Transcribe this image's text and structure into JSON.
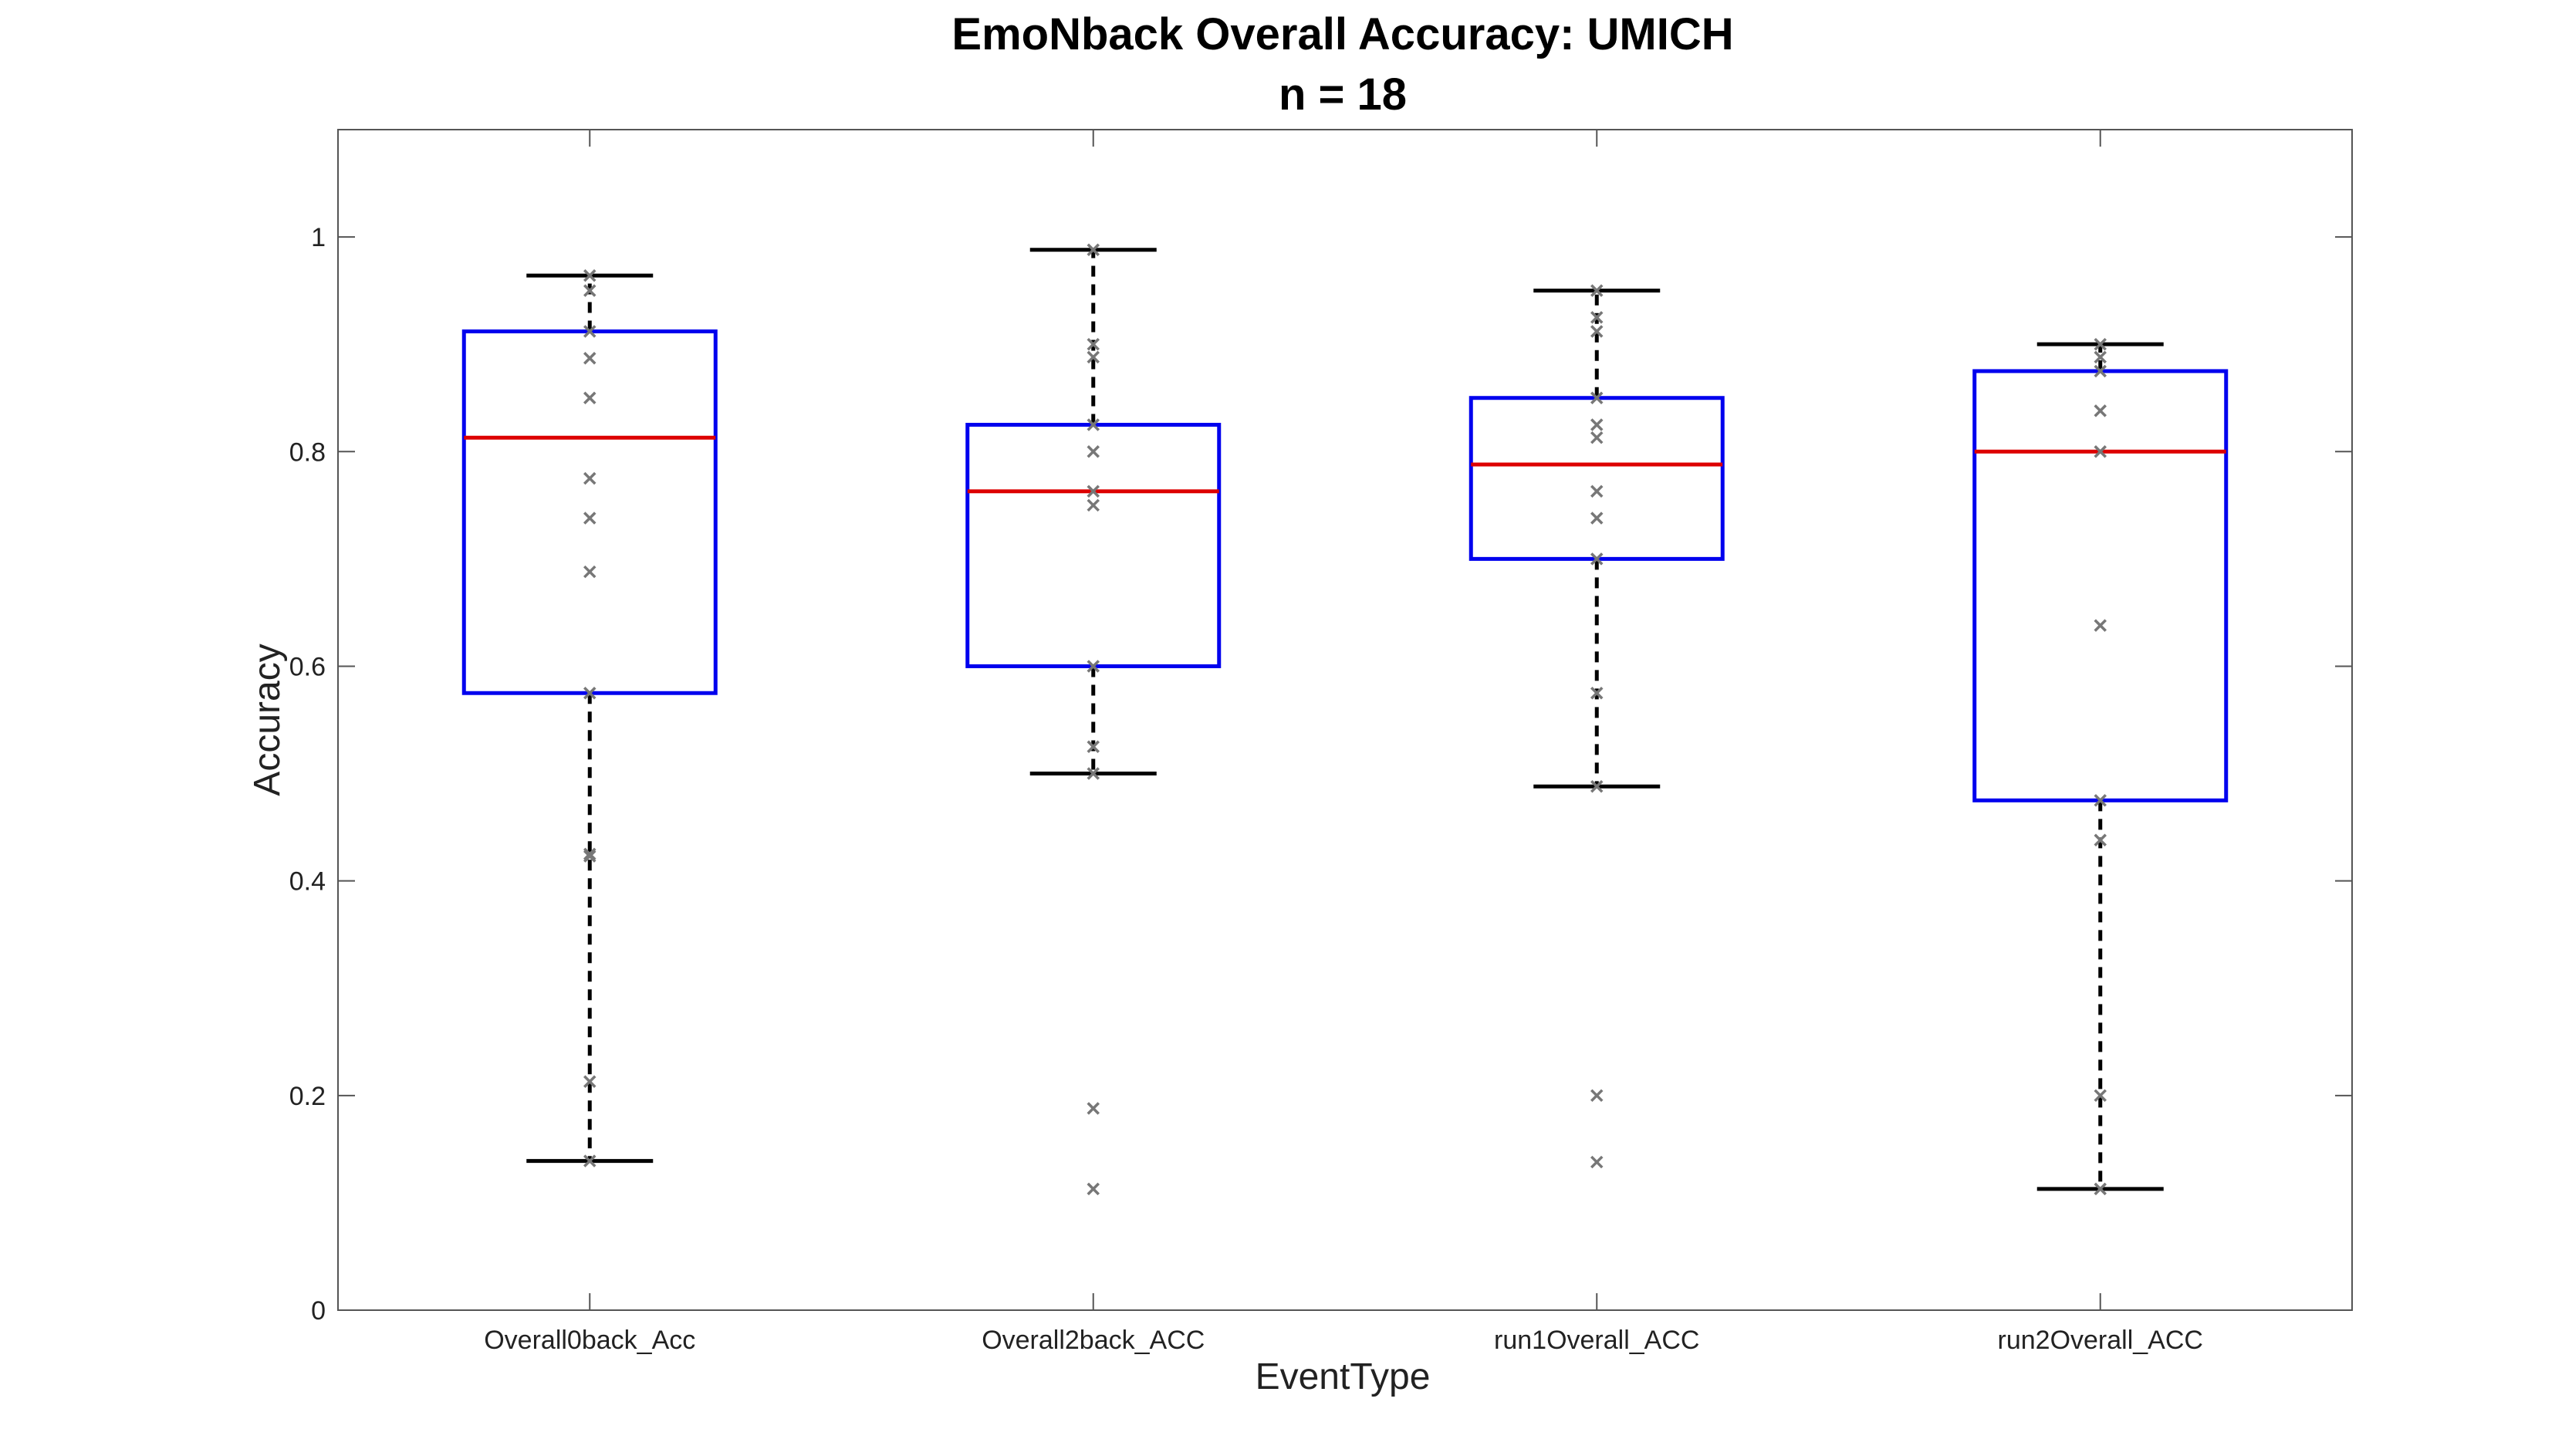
{
  "chart_data": {
    "type": "box",
    "title": "EmoNback Overall Accuracy: UMICH",
    "subtitle": "n = 18",
    "xlabel": "EventType",
    "ylabel": "Accuracy",
    "ylim": [
      0,
      1.1
    ],
    "yticks": [
      0,
      0.2,
      0.4,
      0.6,
      0.8,
      1
    ],
    "ytick_labels": [
      "0",
      "0.2",
      "0.4",
      "0.6",
      "0.8",
      "1"
    ],
    "grid": false,
    "colors": {
      "box": "#0000ee",
      "median": "#dd0000",
      "whisker": "#000000",
      "point": "#777777",
      "axes": "#555555"
    },
    "categories": [
      "Overall0back_Acc",
      "Overall2back_ACC",
      "run1Overall_ACC",
      "run2Overall_ACC"
    ],
    "boxes": [
      {
        "whisker_low": 0.139,
        "q1": 0.575,
        "median": 0.813,
        "q3": 0.912,
        "whisker_high": 0.964,
        "points": [
          0.964,
          0.95,
          0.912,
          0.887,
          0.85,
          0.775,
          0.738,
          0.688,
          0.575,
          0.425,
          0.423,
          0.213,
          0.139
        ]
      },
      {
        "whisker_low": 0.5,
        "q1": 0.6,
        "median": 0.763,
        "q3": 0.825,
        "whisker_high": 0.988,
        "points": [
          0.988,
          0.9,
          0.888,
          0.825,
          0.8,
          0.763,
          0.75,
          0.6,
          0.525,
          0.5,
          0.188,
          0.113
        ]
      },
      {
        "whisker_low": 0.488,
        "q1": 0.7,
        "median": 0.788,
        "q3": 0.85,
        "whisker_high": 0.95,
        "points": [
          0.95,
          0.925,
          0.912,
          0.85,
          0.825,
          0.813,
          0.763,
          0.738,
          0.7,
          0.575,
          0.488,
          0.2,
          0.138
        ]
      },
      {
        "whisker_low": 0.113,
        "q1": 0.475,
        "median": 0.8,
        "q3": 0.875,
        "whisker_high": 0.9,
        "points": [
          0.9,
          0.888,
          0.875,
          0.838,
          0.8,
          0.638,
          0.475,
          0.438,
          0.2,
          0.113
        ]
      }
    ]
  }
}
